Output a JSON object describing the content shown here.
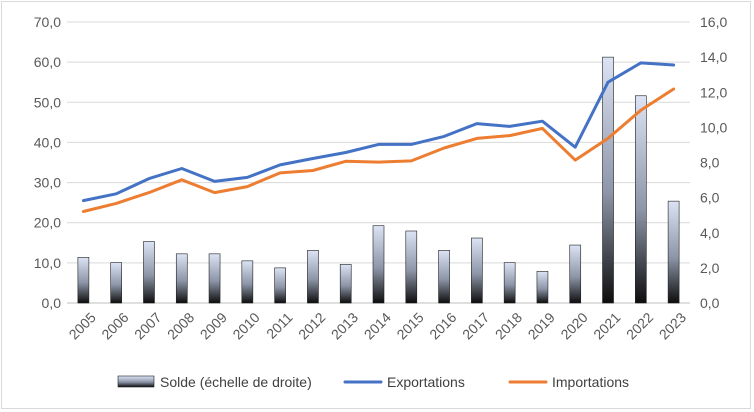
{
  "chart_data": {
    "type": "bar",
    "categories": [
      "2005",
      "2006",
      "2007",
      "2008",
      "2009",
      "2010",
      "2011",
      "2012",
      "2013",
      "2014",
      "2015",
      "2016",
      "2017",
      "2018",
      "2019",
      "2020",
      "2021",
      "2022",
      "2023"
    ],
    "series": [
      {
        "name": "Solde (échelle de droite)",
        "type": "bar",
        "axis": "right",
        "values": [
          2.6,
          2.3,
          3.5,
          2.8,
          2.8,
          2.4,
          2.0,
          3.0,
          2.2,
          4.4,
          4.1,
          3.0,
          3.7,
          2.3,
          1.8,
          3.3,
          14.0,
          11.8,
          5.8
        ]
      },
      {
        "name": "Exportations",
        "type": "line",
        "axis": "left",
        "color": "#4472c4",
        "values": [
          25.5,
          27.2,
          31.0,
          33.5,
          30.3,
          31.3,
          34.4,
          36.0,
          37.5,
          39.5,
          39.5,
          41.5,
          44.7,
          44.0,
          45.3,
          38.8,
          55.0,
          59.8,
          59.3
        ]
      },
      {
        "name": "Importations",
        "type": "line",
        "axis": "left",
        "color": "#ed7d31",
        "values": [
          22.8,
          24.8,
          27.5,
          30.7,
          27.5,
          29.0,
          32.4,
          33.0,
          35.3,
          35.1,
          35.4,
          38.6,
          41.0,
          41.7,
          43.5,
          35.6,
          41.0,
          48.0,
          53.3
        ]
      }
    ],
    "y_left": {
      "lim": [
        0,
        70
      ],
      "ticks": [
        "0,0",
        "10,0",
        "20,0",
        "30,0",
        "40,0",
        "50,0",
        "60,0",
        "70,0"
      ]
    },
    "y_right": {
      "lim": [
        0,
        16
      ],
      "ticks": [
        "0,0",
        "2,0",
        "4,0",
        "6,0",
        "8,0",
        "10,0",
        "12,0",
        "14,0",
        "16,0"
      ]
    },
    "grid": "horizontal",
    "legend": "bottom",
    "title": "",
    "xlabel": "",
    "ylabel": ""
  }
}
